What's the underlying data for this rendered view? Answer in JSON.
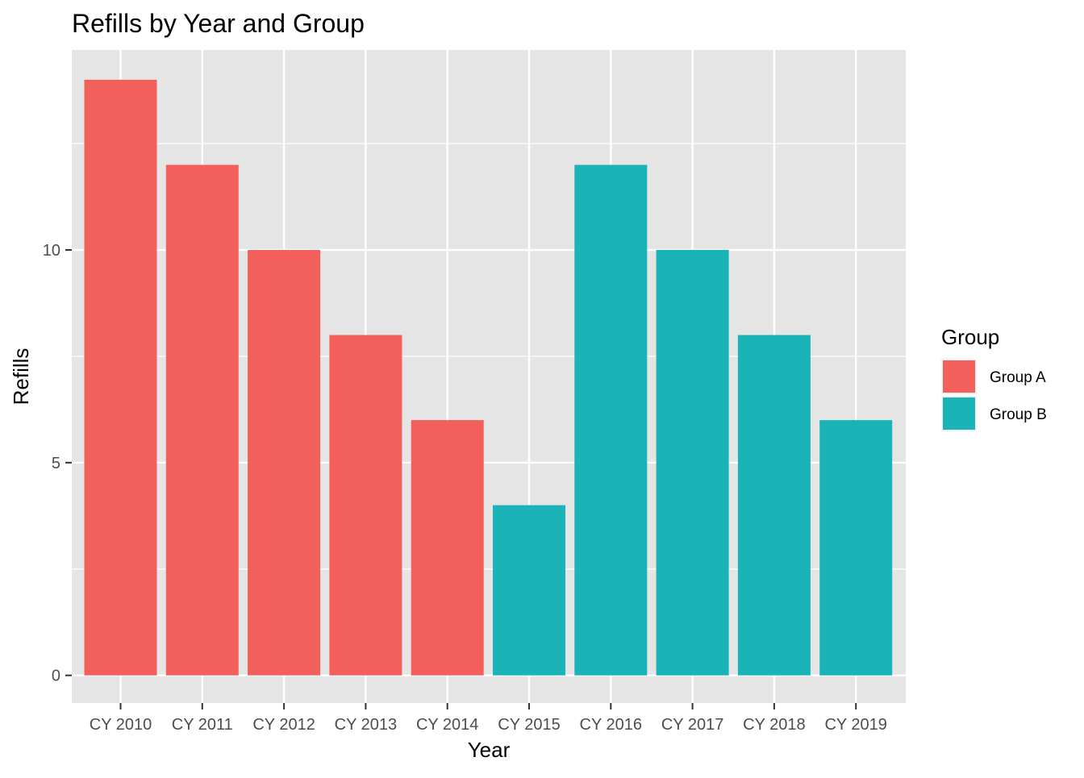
{
  "chart_data": {
    "type": "bar",
    "title": "Refills by Year and Group",
    "xlabel": "Year",
    "ylabel": "Refills",
    "categories": [
      "CY 2010",
      "CY 2011",
      "CY 2012",
      "CY 2013",
      "CY 2014",
      "CY 2015",
      "CY 2016",
      "CY 2017",
      "CY 2018",
      "CY 2019"
    ],
    "values": [
      14,
      12,
      10,
      8,
      6,
      4,
      12,
      10,
      8,
      6
    ],
    "groups": [
      "Group A",
      "Group A",
      "Group A",
      "Group A",
      "Group A",
      "Group B",
      "Group B",
      "Group B",
      "Group B",
      "Group B"
    ],
    "y_ticks": [
      0,
      5,
      10
    ],
    "y_tick_labels": [
      "0",
      "5",
      "10"
    ],
    "ylim": [
      -0.65,
      14.7
    ],
    "grid": true,
    "legend": {
      "title": "Group",
      "position": "right",
      "items": [
        {
          "label": "Group A",
          "color": "#F8766D"
        },
        {
          "label": "Group B",
          "color": "#00BFC4"
        }
      ]
    },
    "colors": {
      "Group A": "#F3605B",
      "Group B": "#19B3B8",
      "panel_background": "#E5E5E5",
      "grid": "#FFFFFF",
      "tick_text": "#4D4D4D"
    }
  }
}
